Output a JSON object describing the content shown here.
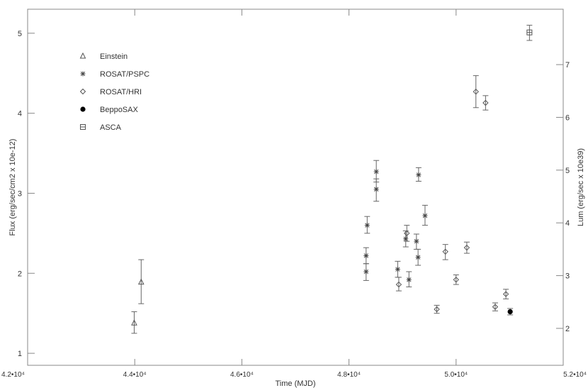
{
  "chart_data": {
    "type": "scatter",
    "xlabel": "Time (MJD)",
    "ylabel": "Flux (erg/sec/cm2 x 10e-12)",
    "y2label": "Lum (erg/sec x 10e39)",
    "xlim": [
      42000,
      52000
    ],
    "ylim": [
      0.85,
      5.3
    ],
    "y2lim": [
      1.3,
      8.05
    ],
    "grid": false,
    "legend_position": "top-left",
    "x_ticks": [
      {
        "value": 42000,
        "label": "4.2•10⁴"
      },
      {
        "value": 44000,
        "label": "4.4•10⁴"
      },
      {
        "value": 46000,
        "label": "4.6•10⁴"
      },
      {
        "value": 48000,
        "label": "4.8•10⁴"
      },
      {
        "value": 50000,
        "label": "5.0•10⁴"
      },
      {
        "value": 52000,
        "label": "5.2•10⁴"
      }
    ],
    "y_ticks": [
      {
        "value": 1,
        "label": "1"
      },
      {
        "value": 2,
        "label": "2"
      },
      {
        "value": 3,
        "label": "3"
      },
      {
        "value": 4,
        "label": "4"
      },
      {
        "value": 5,
        "label": "5"
      }
    ],
    "y2_ticks": [
      {
        "value": 2,
        "label": "2"
      },
      {
        "value": 3,
        "label": "3"
      },
      {
        "value": 4,
        "label": "4"
      },
      {
        "value": 5,
        "label": "5"
      },
      {
        "value": 6,
        "label": "6"
      },
      {
        "value": 7,
        "label": "7"
      }
    ],
    "series": [
      {
        "name": "Einstein",
        "marker": "triangle",
        "points": [
          {
            "x": 43990,
            "y": 1.38,
            "ylo": 1.25,
            "yhi": 1.52
          },
          {
            "x": 44120,
            "y": 1.89,
            "ylo": 1.62,
            "yhi": 2.17
          }
        ]
      },
      {
        "name": "ROSAT/PSPC",
        "marker": "asterisk",
        "points": [
          {
            "x": 48340,
            "y": 2.6,
            "ylo": 2.5,
            "yhi": 2.71
          },
          {
            "x": 48320,
            "y": 2.22,
            "ylo": 2.12,
            "yhi": 2.32
          },
          {
            "x": 48320,
            "y": 2.02,
            "ylo": 1.91,
            "yhi": 2.12
          },
          {
            "x": 48510,
            "y": 3.27,
            "ylo": 3.14,
            "yhi": 3.41
          },
          {
            "x": 48510,
            "y": 3.05,
            "ylo": 2.9,
            "yhi": 3.18
          },
          {
            "x": 48910,
            "y": 2.05,
            "ylo": 1.95,
            "yhi": 2.15
          },
          {
            "x": 49060,
            "y": 2.43,
            "ylo": 2.33,
            "yhi": 2.53
          },
          {
            "x": 49120,
            "y": 1.92,
            "ylo": 1.83,
            "yhi": 2.02
          },
          {
            "x": 49260,
            "y": 2.4,
            "ylo": 2.3,
            "yhi": 2.49
          },
          {
            "x": 49290,
            "y": 2.2,
            "ylo": 2.1,
            "yhi": 2.3
          },
          {
            "x": 49300,
            "y": 3.23,
            "ylo": 3.15,
            "yhi": 3.32
          },
          {
            "x": 49420,
            "y": 2.72,
            "ylo": 2.6,
            "yhi": 2.85
          }
        ]
      },
      {
        "name": "ROSAT/HRI",
        "marker": "diamond",
        "points": [
          {
            "x": 48930,
            "y": 1.86,
            "ylo": 1.78,
            "yhi": 1.95
          },
          {
            "x": 49080,
            "y": 2.5,
            "ylo": 2.4,
            "yhi": 2.6
          },
          {
            "x": 49640,
            "y": 1.55,
            "ylo": 1.5,
            "yhi": 1.6
          },
          {
            "x": 49800,
            "y": 2.27,
            "ylo": 2.17,
            "yhi": 2.36
          },
          {
            "x": 50000,
            "y": 1.92,
            "ylo": 1.86,
            "yhi": 1.98
          },
          {
            "x": 50200,
            "y": 2.32,
            "ylo": 2.25,
            "yhi": 2.39
          },
          {
            "x": 50370,
            "y": 4.27,
            "ylo": 4.07,
            "yhi": 4.47
          },
          {
            "x": 50550,
            "y": 4.13,
            "ylo": 4.04,
            "yhi": 4.22
          },
          {
            "x": 50730,
            "y": 1.58,
            "ylo": 1.53,
            "yhi": 1.63
          },
          {
            "x": 50930,
            "y": 1.74,
            "ylo": 1.68,
            "yhi": 1.8
          }
        ]
      },
      {
        "name": "BeppoSAX",
        "marker": "filled-circle",
        "points": [
          {
            "x": 51010,
            "y": 1.52,
            "ylo": 1.48,
            "yhi": 1.56
          }
        ]
      },
      {
        "name": "ASCA",
        "marker": "square",
        "points": [
          {
            "x": 51370,
            "y": 5.01,
            "ylo": 4.91,
            "yhi": 5.1
          }
        ]
      }
    ]
  }
}
